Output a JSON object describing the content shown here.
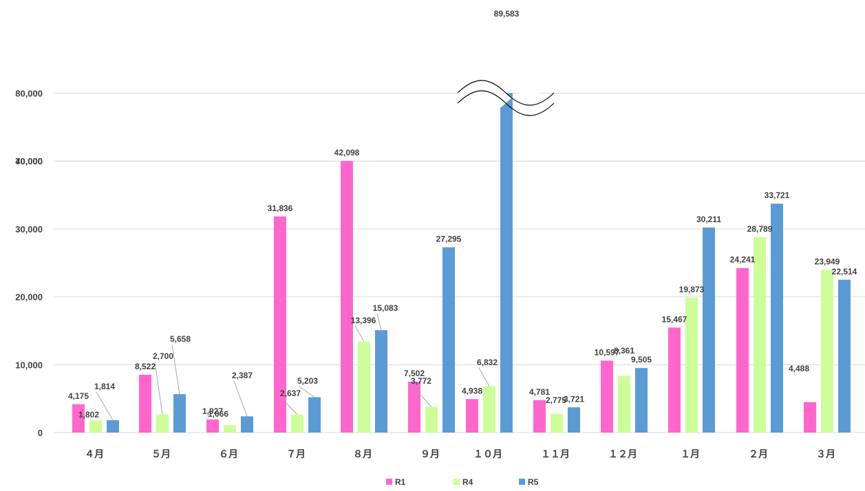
{
  "chart_data": {
    "type": "bar",
    "categories": [
      "４月",
      "５月",
      "６月",
      "７月",
      "８月",
      "９月",
      "１０月",
      "１１月",
      "１２月",
      "１月",
      "２月",
      "３月"
    ],
    "series": [
      {
        "name": "R1",
        "color": "#ff66cc",
        "values": [
          4175,
          8522,
          1927,
          31836,
          42098,
          7502,
          4938,
          4781,
          10597,
          15467,
          24241,
          4488
        ]
      },
      {
        "name": "R4",
        "color": "#ccff99",
        "values": [
          1802,
          2700,
          1066,
          2637,
          13396,
          3772,
          6832,
          2775,
          8361,
          19873,
          28789,
          23949
        ]
      },
      {
        "name": "R5",
        "color": "#5b9bd5",
        "values": [
          1814,
          5658,
          2387,
          5203,
          15083,
          27295,
          89583,
          3721,
          9505,
          30211,
          33721,
          22514
        ]
      }
    ],
    "y_ticks": [
      "0",
      "10,000",
      "20,000",
      "30,000",
      "40,000",
      "70,000",
      "80,000"
    ],
    "data_labels": [
      [
        "4,175",
        "8,522",
        "1,927",
        "31,836",
        "42,098",
        "7,502",
        "4,938",
        "4,781",
        "10,597",
        "15,467",
        "24,241",
        "4,488"
      ],
      [
        "1,802",
        "2,700",
        "1,066",
        "2,637",
        "13,396",
        "3,772",
        "6,832",
        "2,775",
        "8,361",
        "19,873",
        "28,789",
        "23,949"
      ],
      [
        "1,814",
        "5,658",
        "2,387",
        "5,203",
        "15,083",
        "27,295",
        "89,583",
        "3,721",
        "9,505",
        "30,211",
        "33,721",
        "22,514"
      ]
    ],
    "axis_break": {
      "from": 40000,
      "to": 70000
    },
    "ylim": [
      0,
      80000
    ],
    "grid": true,
    "legend_position": "bottom"
  }
}
